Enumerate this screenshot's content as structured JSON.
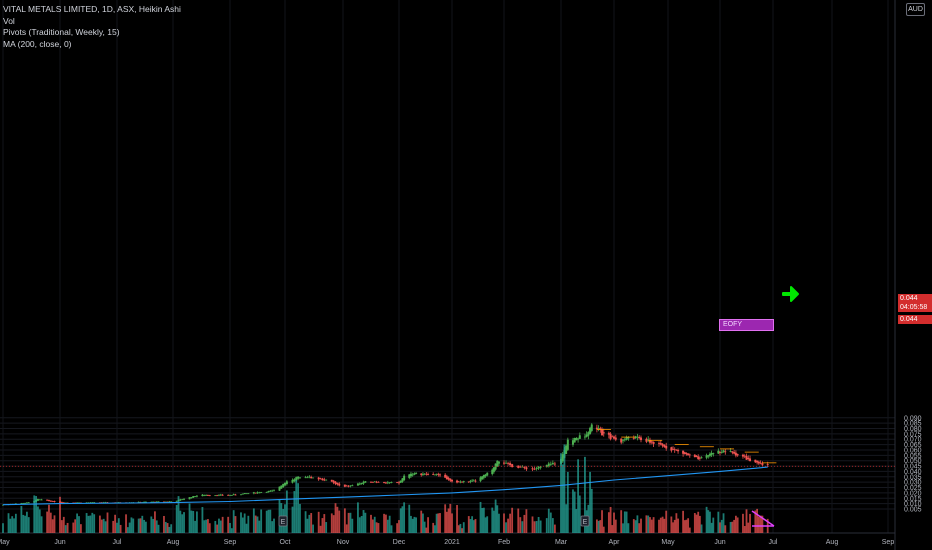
{
  "legend": {
    "title": "VITAL METALS LIMITED, 1D, ASX, Heikin Ashi",
    "vol": "Vol",
    "pivots": "Pivots (Traditional, Weekly, 15)",
    "ma": "MA (200, close, 0)"
  },
  "currency": "AUD",
  "price_tags": {
    "last": "0.044",
    "countdown": "04:05:58",
    "ma": "0.044"
  },
  "annotation": {
    "label": "EOFY"
  },
  "event_markers": [
    "E",
    "E"
  ],
  "colors": {
    "up": "#26a69a",
    "bull_candle": "#4caf50",
    "down": "#ef5350",
    "ma": "#2196f3",
    "arrow": "#00e600",
    "annotation": "#9c27b0",
    "volume_trend": "#e040fb",
    "price_line": "#d32d2d"
  },
  "chart_data": {
    "type": "candlestick",
    "title": "VITAL METALS LIMITED, 1D, ASX, Heikin Ashi",
    "x_tick_labels": [
      "May",
      "Jun",
      "Jul",
      "Aug",
      "Sep",
      "Oct",
      "Nov",
      "Dec",
      "2021",
      "Feb",
      "Mar",
      "Apr",
      "May",
      "Jun",
      "Jul",
      "Aug",
      "Sep"
    ],
    "y_tick_labels": [
      "0.005",
      "0.010",
      "0.015",
      "0.020",
      "0.025",
      "0.030",
      "0.035",
      "0.040",
      "0.045",
      "0.050",
      "0.055",
      "0.060",
      "0.065",
      "0.070",
      "0.075",
      "0.080",
      "0.085",
      "0.090"
    ],
    "ylim": [
      0.001,
      0.094
    ],
    "price_path": [
      [
        "2020-05-01",
        0.009
      ],
      [
        "2020-05-15",
        0.011
      ],
      [
        "2020-05-20",
        0.014
      ],
      [
        "2020-06-01",
        0.011
      ],
      [
        "2020-07-01",
        0.011
      ],
      [
        "2020-08-01",
        0.012
      ],
      [
        "2020-08-15",
        0.018
      ],
      [
        "2020-09-01",
        0.018
      ],
      [
        "2020-09-25",
        0.022
      ],
      [
        "2020-10-01",
        0.03
      ],
      [
        "2020-10-10",
        0.036
      ],
      [
        "2020-10-25",
        0.031
      ],
      [
        "2020-11-01",
        0.025
      ],
      [
        "2020-11-15",
        0.031
      ],
      [
        "2020-12-01",
        0.029
      ],
      [
        "2020-12-05",
        0.038
      ],
      [
        "2020-12-25",
        0.037
      ],
      [
        "2021-01-01",
        0.03
      ],
      [
        "2021-01-15",
        0.031
      ],
      [
        "2021-01-25",
        0.041
      ],
      [
        "2021-01-28",
        0.051
      ],
      [
        "2021-02-05",
        0.045
      ],
      [
        "2021-02-15",
        0.042
      ],
      [
        "2021-02-28",
        0.049
      ],
      [
        "2021-03-05",
        0.068
      ],
      [
        "2021-03-15",
        0.074
      ],
      [
        "2021-03-20",
        0.085
      ],
      [
        "2021-03-25",
        0.075
      ],
      [
        "2021-04-05",
        0.068
      ],
      [
        "2021-04-10",
        0.073
      ],
      [
        "2021-04-20",
        0.068
      ],
      [
        "2021-05-01",
        0.062
      ],
      [
        "2021-05-20",
        0.051
      ],
      [
        "2021-05-28",
        0.058
      ],
      [
        "2021-06-05",
        0.059
      ],
      [
        "2021-06-15",
        0.053
      ],
      [
        "2021-06-20",
        0.048
      ],
      [
        "2021-06-28",
        0.045
      ]
    ],
    "ma200": [
      [
        "2020-05-01",
        0.009
      ],
      [
        "2020-06-01",
        0.01
      ],
      [
        "2020-08-01",
        0.011
      ],
      [
        "2020-09-01",
        0.012
      ],
      [
        "2020-10-01",
        0.014
      ],
      [
        "2020-11-01",
        0.016
      ],
      [
        "2020-12-01",
        0.018
      ],
      [
        "2021-01-01",
        0.02
      ],
      [
        "2021-02-01",
        0.023
      ],
      [
        "2021-03-01",
        0.027
      ],
      [
        "2021-04-01",
        0.032
      ],
      [
        "2021-05-01",
        0.036
      ],
      [
        "2021-06-01",
        0.04
      ],
      [
        "2021-06-28",
        0.044
      ]
    ]
  }
}
